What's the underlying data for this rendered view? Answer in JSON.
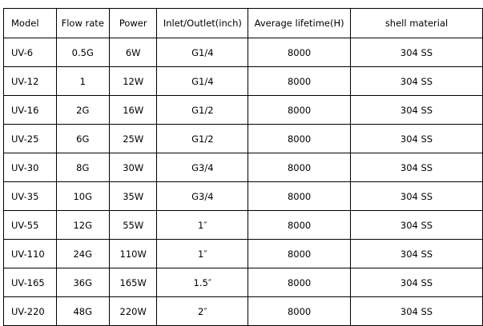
{
  "table": {
    "header": [
      "Model",
      "Flow rate",
      "Power",
      "Inlet/Outlet(inch)",
      "Average lifetime(H)",
      "shell material"
    ],
    "rows": [
      [
        "UV-6",
        "0.5G",
        "6W",
        "G1/4",
        "8000",
        "304 SS"
      ],
      [
        "UV-12",
        "1",
        "12W",
        "G1/4",
        "8000",
        "304 SS"
      ],
      [
        "UV-16",
        "2G",
        "16W",
        "G1/2",
        "8000",
        "304 SS"
      ],
      [
        "UV-25",
        "6G",
        "25W",
        "G1/2",
        "8000",
        "304 SS"
      ],
      [
        "UV-30",
        "8G",
        "30W",
        "G3/4",
        "8000",
        "304 SS"
      ],
      [
        "UV-35",
        "10G",
        "35W",
        "G3/4",
        "8000",
        "304 SS"
      ],
      [
        "UV-55",
        "12G",
        "55W",
        "1″",
        "8000",
        "304 SS"
      ],
      [
        "UV-110",
        "24G",
        "110W",
        "1″",
        "8000",
        "304 SS"
      ],
      [
        "UV-165",
        "36G",
        "165W",
        "1.5″",
        "8000",
        "304 SS"
      ],
      [
        "UV-220",
        "48G",
        "220W",
        "2″",
        "8000",
        "304 SS"
      ]
    ]
  }
}
